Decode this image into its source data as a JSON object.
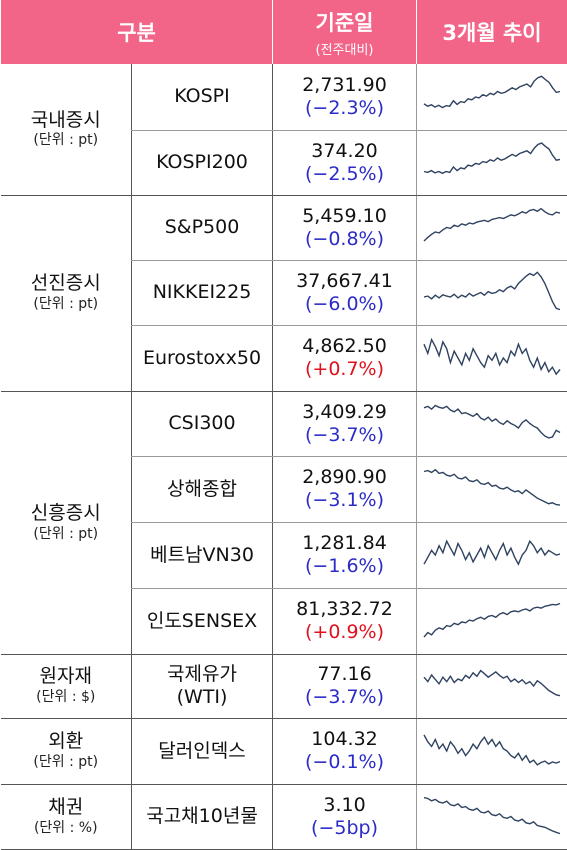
{
  "header": {
    "col_category": "구분",
    "col_base_title": "기준일",
    "col_base_sub": "(전주대비)",
    "col_trend": "3개월 추이"
  },
  "groups": [
    {
      "name": "국내증시",
      "unit": "(단위 : pt)",
      "rows": [
        {
          "name": "KOSPI",
          "value": "2,731.90",
          "change": "(−2.3%)",
          "dir": "neg"
        },
        {
          "name": "KOSPI200",
          "value": "374.20",
          "change": "(−2.5%)",
          "dir": "neg"
        }
      ]
    },
    {
      "name": "선진증시",
      "unit": "(단위 : pt)",
      "rows": [
        {
          "name": "S&P500",
          "value": "5,459.10",
          "change": "(−0.8%)",
          "dir": "neg"
        },
        {
          "name": "NIKKEI225",
          "value": "37,667.41",
          "change": "(−6.0%)",
          "dir": "neg"
        },
        {
          "name": "Eurostoxx50",
          "value": "4,862.50",
          "change": "(+0.7%)",
          "dir": "pos"
        }
      ]
    },
    {
      "name": "신흥증시",
      "unit": "(단위 : pt)",
      "rows": [
        {
          "name": "CSI300",
          "value": "3,409.29",
          "change": "(−3.7%)",
          "dir": "neg"
        },
        {
          "name": "상해종합",
          "value": "2,890.90",
          "change": "(−3.1%)",
          "dir": "neg"
        },
        {
          "name": "베트남VN30",
          "value": "1,281.84",
          "change": "(−1.6%)",
          "dir": "neg"
        },
        {
          "name": "인도SENSEX",
          "value": "81,332.72",
          "change": "(+0.9%)",
          "dir": "pos"
        }
      ]
    },
    {
      "name": "원자재",
      "unit": "(단위 : $)",
      "rows": [
        {
          "name": "국제유가\n(WTI)",
          "value": "77.16",
          "change": "(−3.7%)",
          "dir": "neg"
        }
      ]
    },
    {
      "name": "외환",
      "unit": "(단위 : pt)",
      "rows": [
        {
          "name": "달러인덱스",
          "value": "104.32",
          "change": "(−0.1%)",
          "dir": "neg"
        }
      ]
    },
    {
      "name": "채권",
      "unit": "(단위 : %)",
      "rows": [
        {
          "name": "국고채10년물",
          "value": "3.10",
          "change": "(−5bp)",
          "dir": "neg"
        }
      ]
    }
  ],
  "sparklines": [
    [
      0.35,
      0.3,
      0.33,
      0.28,
      0.32,
      0.27,
      0.31,
      0.3,
      0.42,
      0.34,
      0.4,
      0.38,
      0.46,
      0.44,
      0.5,
      0.48,
      0.55,
      0.52,
      0.58,
      0.55,
      0.62,
      0.58,
      0.6,
      0.65,
      0.7,
      0.66,
      0.72,
      0.75,
      0.78,
      0.72,
      0.85,
      0.92,
      0.95,
      0.88,
      0.82,
      0.7,
      0.6,
      0.62
    ],
    [
      0.3,
      0.28,
      0.32,
      0.27,
      0.3,
      0.26,
      0.3,
      0.28,
      0.4,
      0.32,
      0.38,
      0.36,
      0.44,
      0.42,
      0.48,
      0.46,
      0.52,
      0.5,
      0.56,
      0.53,
      0.6,
      0.55,
      0.58,
      0.63,
      0.68,
      0.64,
      0.7,
      0.73,
      0.76,
      0.7,
      0.82,
      0.9,
      0.93,
      0.86,
      0.8,
      0.66,
      0.55,
      0.57
    ],
    [
      0.2,
      0.28,
      0.35,
      0.4,
      0.38,
      0.45,
      0.5,
      0.48,
      0.55,
      0.52,
      0.58,
      0.55,
      0.6,
      0.58,
      0.62,
      0.64,
      0.66,
      0.63,
      0.68,
      0.7,
      0.72,
      0.7,
      0.74,
      0.78,
      0.76,
      0.8,
      0.85,
      0.82,
      0.88,
      0.9,
      0.86,
      0.92,
      0.85,
      0.8,
      0.78,
      0.84,
      0.82
    ],
    [
      0.4,
      0.42,
      0.36,
      0.44,
      0.38,
      0.45,
      0.42,
      0.4,
      0.46,
      0.38,
      0.44,
      0.4,
      0.48,
      0.42,
      0.46,
      0.5,
      0.44,
      0.52,
      0.48,
      0.5,
      0.56,
      0.52,
      0.6,
      0.64,
      0.58,
      0.7,
      0.78,
      0.86,
      0.92,
      0.88,
      0.95,
      0.85,
      0.7,
      0.5,
      0.3,
      0.15,
      0.12
    ],
    [
      0.8,
      0.6,
      0.9,
      0.75,
      0.55,
      0.85,
      0.7,
      0.4,
      0.65,
      0.5,
      0.35,
      0.6,
      0.45,
      0.7,
      0.55,
      0.4,
      0.3,
      0.55,
      0.45,
      0.6,
      0.35,
      0.5,
      0.4,
      0.65,
      0.55,
      0.8,
      0.6,
      0.7,
      0.45,
      0.3,
      0.5,
      0.25,
      0.4,
      0.2,
      0.3,
      0.15,
      0.25
    ],
    [
      0.85,
      0.88,
      0.82,
      0.9,
      0.86,
      0.84,
      0.88,
      0.8,
      0.76,
      0.82,
      0.72,
      0.74,
      0.7,
      0.66,
      0.72,
      0.62,
      0.58,
      0.64,
      0.55,
      0.6,
      0.52,
      0.48,
      0.56,
      0.5,
      0.46,
      0.4,
      0.52,
      0.58,
      0.5,
      0.44,
      0.4,
      0.3,
      0.22,
      0.18,
      0.2,
      0.35,
      0.3
    ],
    [
      0.88,
      0.9,
      0.86,
      0.92,
      0.84,
      0.86,
      0.8,
      0.78,
      0.82,
      0.74,
      0.72,
      0.76,
      0.68,
      0.66,
      0.7,
      0.62,
      0.6,
      0.64,
      0.56,
      0.58,
      0.52,
      0.5,
      0.54,
      0.48,
      0.44,
      0.46,
      0.4,
      0.48,
      0.42,
      0.36,
      0.3,
      0.26,
      0.22,
      0.18,
      0.2,
      0.16,
      0.15
    ],
    [
      0.3,
      0.45,
      0.6,
      0.5,
      0.7,
      0.55,
      0.8,
      0.65,
      0.5,
      0.75,
      0.6,
      0.4,
      0.55,
      0.35,
      0.5,
      0.65,
      0.45,
      0.7,
      0.55,
      0.4,
      0.6,
      0.75,
      0.5,
      0.65,
      0.45,
      0.3,
      0.5,
      0.6,
      0.8,
      0.7,
      0.55,
      0.65,
      0.5,
      0.6,
      0.55,
      0.5,
      0.52
    ],
    [
      0.15,
      0.25,
      0.2,
      0.3,
      0.35,
      0.32,
      0.4,
      0.38,
      0.45,
      0.42,
      0.48,
      0.46,
      0.52,
      0.5,
      0.55,
      0.58,
      0.54,
      0.6,
      0.62,
      0.58,
      0.65,
      0.68,
      0.64,
      0.7,
      0.72,
      0.7,
      0.74,
      0.76,
      0.72,
      0.78,
      0.8,
      0.78,
      0.82,
      0.84,
      0.86,
      0.85,
      0.88
    ],
    [
      0.7,
      0.6,
      0.75,
      0.65,
      0.55,
      0.7,
      0.6,
      0.72,
      0.58,
      0.66,
      0.62,
      0.74,
      0.68,
      0.8,
      0.72,
      0.85,
      0.78,
      0.7,
      0.76,
      0.82,
      0.74,
      0.68,
      0.72,
      0.6,
      0.66,
      0.58,
      0.64,
      0.55,
      0.6,
      0.5,
      0.62,
      0.56,
      0.48,
      0.4,
      0.35,
      0.3,
      0.28
    ],
    [
      0.85,
      0.7,
      0.6,
      0.75,
      0.55,
      0.65,
      0.5,
      0.7,
      0.6,
      0.45,
      0.55,
      0.4,
      0.5,
      0.65,
      0.55,
      0.7,
      0.8,
      0.65,
      0.75,
      0.6,
      0.7,
      0.55,
      0.5,
      0.4,
      0.35,
      0.45,
      0.3,
      0.4,
      0.25,
      0.3,
      0.2,
      0.25,
      0.28,
      0.22,
      0.26,
      0.24,
      0.27
    ],
    [
      0.92,
      0.9,
      0.85,
      0.88,
      0.82,
      0.8,
      0.84,
      0.76,
      0.74,
      0.78,
      0.7,
      0.72,
      0.66,
      0.64,
      0.68,
      0.6,
      0.58,
      0.62,
      0.54,
      0.52,
      0.56,
      0.48,
      0.46,
      0.5,
      0.42,
      0.4,
      0.44,
      0.36,
      0.34,
      0.38,
      0.3,
      0.28,
      0.26,
      0.22,
      0.18,
      0.15,
      0.12
    ]
  ],
  "colors": {
    "header_bg": "#f26488",
    "neg": "#2b2bc8",
    "pos": "#e0101c",
    "spark": "#2f4260"
  }
}
